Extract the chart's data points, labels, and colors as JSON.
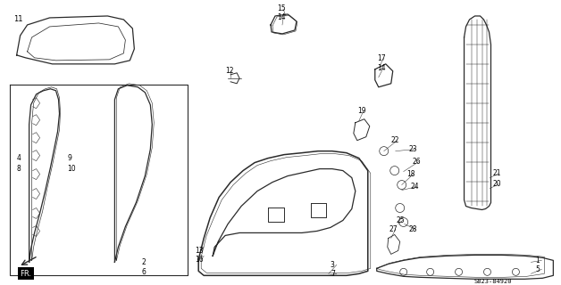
{
  "bg_color": "#ffffff",
  "line_color": "#2a2a2a",
  "text_color": "#000000",
  "diagram_code": "S823-84920"
}
